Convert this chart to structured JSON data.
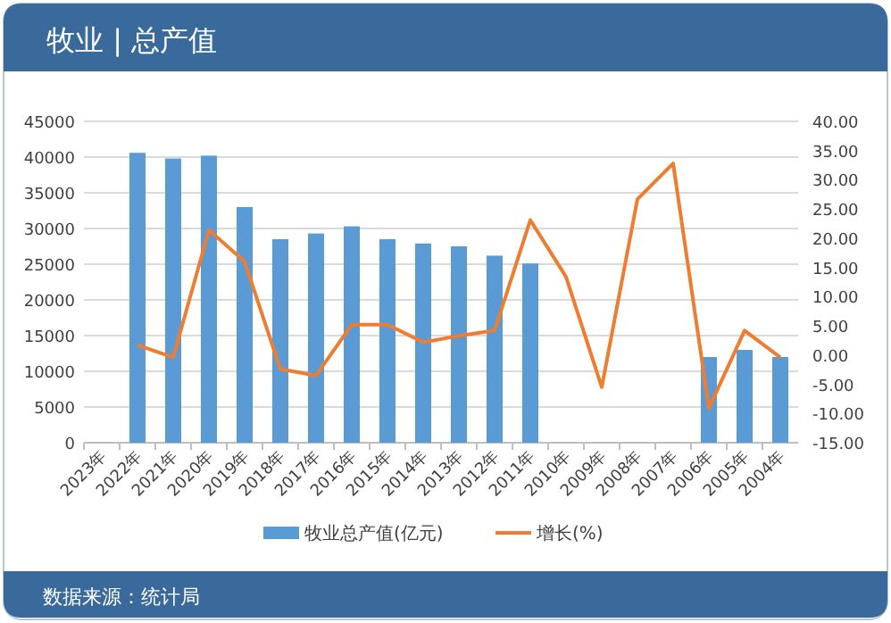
{
  "chart_data": {
    "type": "bar",
    "title": "牧业 | 总产值",
    "categories": [
      "2023年",
      "2022年",
      "2021年",
      "2020年",
      "2019年",
      "2018年",
      "2017年",
      "2016年",
      "2015年",
      "2014年",
      "2013年",
      "2012年",
      "2011年",
      "2010年",
      "2009年",
      "2008年",
      "2007年",
      "2006年",
      "2005年",
      "2004年"
    ],
    "series": [
      {
        "name": "牧业总产值(亿元)",
        "color": "#5b9bd5",
        "values": [
          null,
          40600,
          39800,
          40200,
          33000,
          28500,
          29300,
          30300,
          28500,
          27900,
          27500,
          26200,
          25100,
          null,
          null,
          null,
          null,
          12000,
          13000,
          12000
        ]
      },
      {
        "name": "增长(%)",
        "type": "line",
        "axis": "y2",
        "color": "#ed7d31",
        "values": [
          null,
          1.7,
          -0.4,
          21.4,
          16,
          -2.4,
          -3.5,
          5.2,
          5.2,
          2.2,
          3.3,
          4.2,
          23.1,
          13.4,
          -5.5,
          26.7,
          32.8,
          -9.1,
          4.2,
          -0.4
        ]
      }
    ],
    "ylim": [
      0,
      45000
    ],
    "yticks": [
      0,
      5000,
      10000,
      15000,
      20000,
      25000,
      30000,
      35000,
      40000,
      45000
    ],
    "y2lim": [
      -15,
      40
    ],
    "y2ticks": [
      {
        "value": -15,
        "label": "-15.00"
      },
      {
        "value": -10,
        "label": "-10.00"
      },
      {
        "value": -5,
        "label": "-5.00"
      },
      {
        "value": 0,
        "label": "0.00"
      },
      {
        "value": 5,
        "label": "5.00"
      },
      {
        "value": 10,
        "label": "10.00"
      },
      {
        "value": 15,
        "label": "15.00"
      },
      {
        "value": 20,
        "label": "20.00"
      },
      {
        "value": 25,
        "label": "25.00"
      },
      {
        "value": 30,
        "label": "30.00"
      },
      {
        "value": 35,
        "label": "35.00"
      },
      {
        "value": 40,
        "label": "40.00"
      }
    ],
    "grid": "y",
    "legend": "bottom",
    "annotations": [
      "数据来源：统计局"
    ]
  }
}
